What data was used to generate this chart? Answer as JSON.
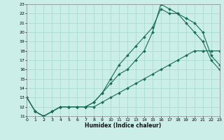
{
  "xlabel": "Humidex (Indice chaleur)",
  "bg_color": "#cceee8",
  "grid_color": "#aaddcc",
  "line_color": "#1a6b5a",
  "xmin": 0,
  "xmax": 23,
  "ymin": 11,
  "ymax": 23,
  "yticks": [
    11,
    12,
    13,
    14,
    15,
    16,
    17,
    18,
    19,
    20,
    21,
    22,
    23
  ],
  "line1_x": [
    0,
    1,
    2,
    3,
    4,
    5,
    6,
    7,
    8,
    9,
    10,
    11,
    12,
    13,
    14,
    15,
    16,
    17,
    18,
    19,
    20,
    21,
    22,
    23
  ],
  "line1_y": [
    13,
    11.5,
    11,
    11.5,
    12,
    12,
    12,
    12,
    12,
    12.5,
    13,
    13.5,
    14,
    14.5,
    15,
    15.5,
    16,
    16.5,
    17,
    17.5,
    18,
    18,
    18,
    18
  ],
  "line2_x": [
    0,
    1,
    2,
    3,
    4,
    5,
    6,
    7,
    8,
    9,
    10,
    11,
    12,
    13,
    14,
    15,
    16,
    17,
    18,
    19,
    20,
    21,
    22,
    23
  ],
  "line2_y": [
    13,
    11.5,
    11,
    11.5,
    12,
    12,
    12,
    12,
    12.5,
    13.5,
    15,
    16.5,
    17.5,
    18.5,
    19.5,
    20.5,
    22.5,
    22,
    22,
    21,
    20,
    19,
    17,
    16
  ],
  "line3_x": [
    0,
    1,
    2,
    3,
    4,
    5,
    6,
    7,
    8,
    9,
    10,
    11,
    12,
    13,
    14,
    15,
    16,
    17,
    18,
    19,
    20,
    21,
    22,
    23
  ],
  "line3_y": [
    13,
    11.5,
    11,
    11.5,
    12,
    12,
    12,
    12,
    12.5,
    13.5,
    14.5,
    15.5,
    16,
    17,
    18,
    20,
    23,
    22.5,
    22,
    21.5,
    21,
    20,
    17.5,
    16.5
  ]
}
